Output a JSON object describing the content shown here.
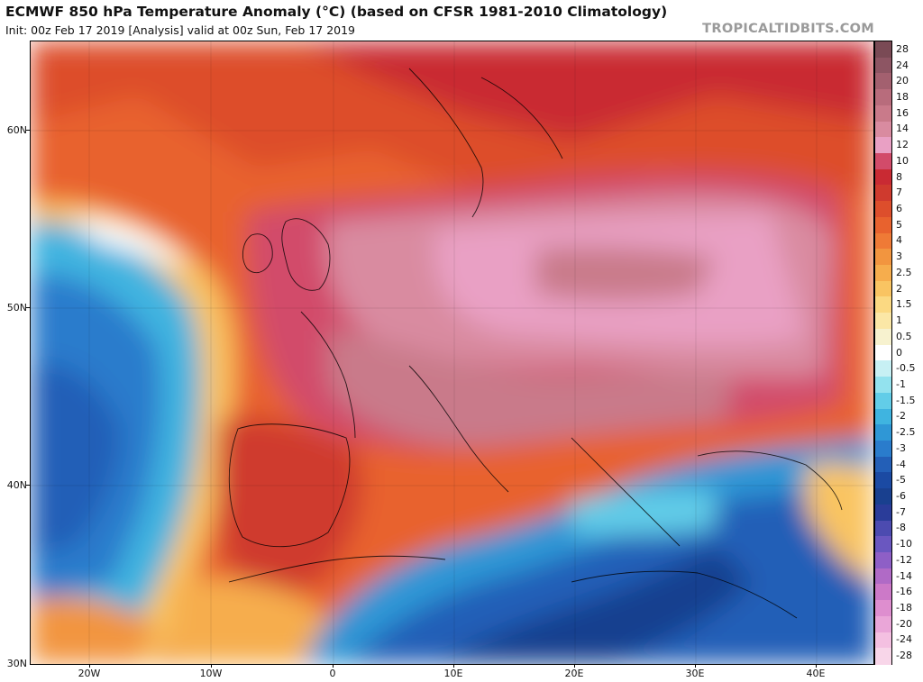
{
  "header": {
    "title": "ECMWF 850 hPa Temperature Anomaly (°C) (based on CFSR 1981-2010 Climatology)",
    "subtitle": "Init: 00z Feb 17 2019   [Analysis]   valid at 00z Sun, Feb 17 2019",
    "credit": "TROPICALTIDBITS.COM"
  },
  "axes": {
    "lat_labels": [
      "60N",
      "50N",
      "40N",
      "30N"
    ],
    "lon_labels": [
      "20W",
      "10W",
      "0",
      "10E",
      "20E",
      "30E",
      "40E"
    ]
  },
  "colorbar": {
    "labels": [
      "28",
      "24",
      "20",
      "18",
      "16",
      "14",
      "12",
      "10",
      "8",
      "7",
      "6",
      "5",
      "4",
      "3",
      "2.5",
      "2",
      "1.5",
      "1",
      "0.5",
      "0",
      "-0.5",
      "-1",
      "-1.5",
      "-2",
      "-2.5",
      "-3",
      "-4",
      "-5",
      "-6",
      "-7",
      "-8",
      "-10",
      "-12",
      "-14",
      "-16",
      "-18",
      "-20",
      "-24",
      "-28"
    ],
    "colors": [
      "#7a4a55",
      "#8d5563",
      "#a3606f",
      "#b86c7c",
      "#c97a8a",
      "#d98ba0",
      "#e9a0c4",
      "#d24b6a",
      "#c92a33",
      "#cf3a2e",
      "#dd4e2c",
      "#e8622e",
      "#ef7a36",
      "#f2953f",
      "#f6ad4d",
      "#f9c462",
      "#fbd982",
      "#fbe7a6",
      "#f7f2cf",
      "#ffffff",
      "#c7f0f4",
      "#93e2ee",
      "#62cde8",
      "#3fb4e0",
      "#2f97d6",
      "#2a7ccc",
      "#235fb7",
      "#1b4aa3",
      "#19408f",
      "#2a3c99",
      "#4c4bb0",
      "#6a57c0",
      "#8e5fc6",
      "#b06ac6",
      "#cc79c8",
      "#de8ecf",
      "#eaa6d8",
      "#f4c0e1",
      "#f8d6e9"
    ]
  }
}
